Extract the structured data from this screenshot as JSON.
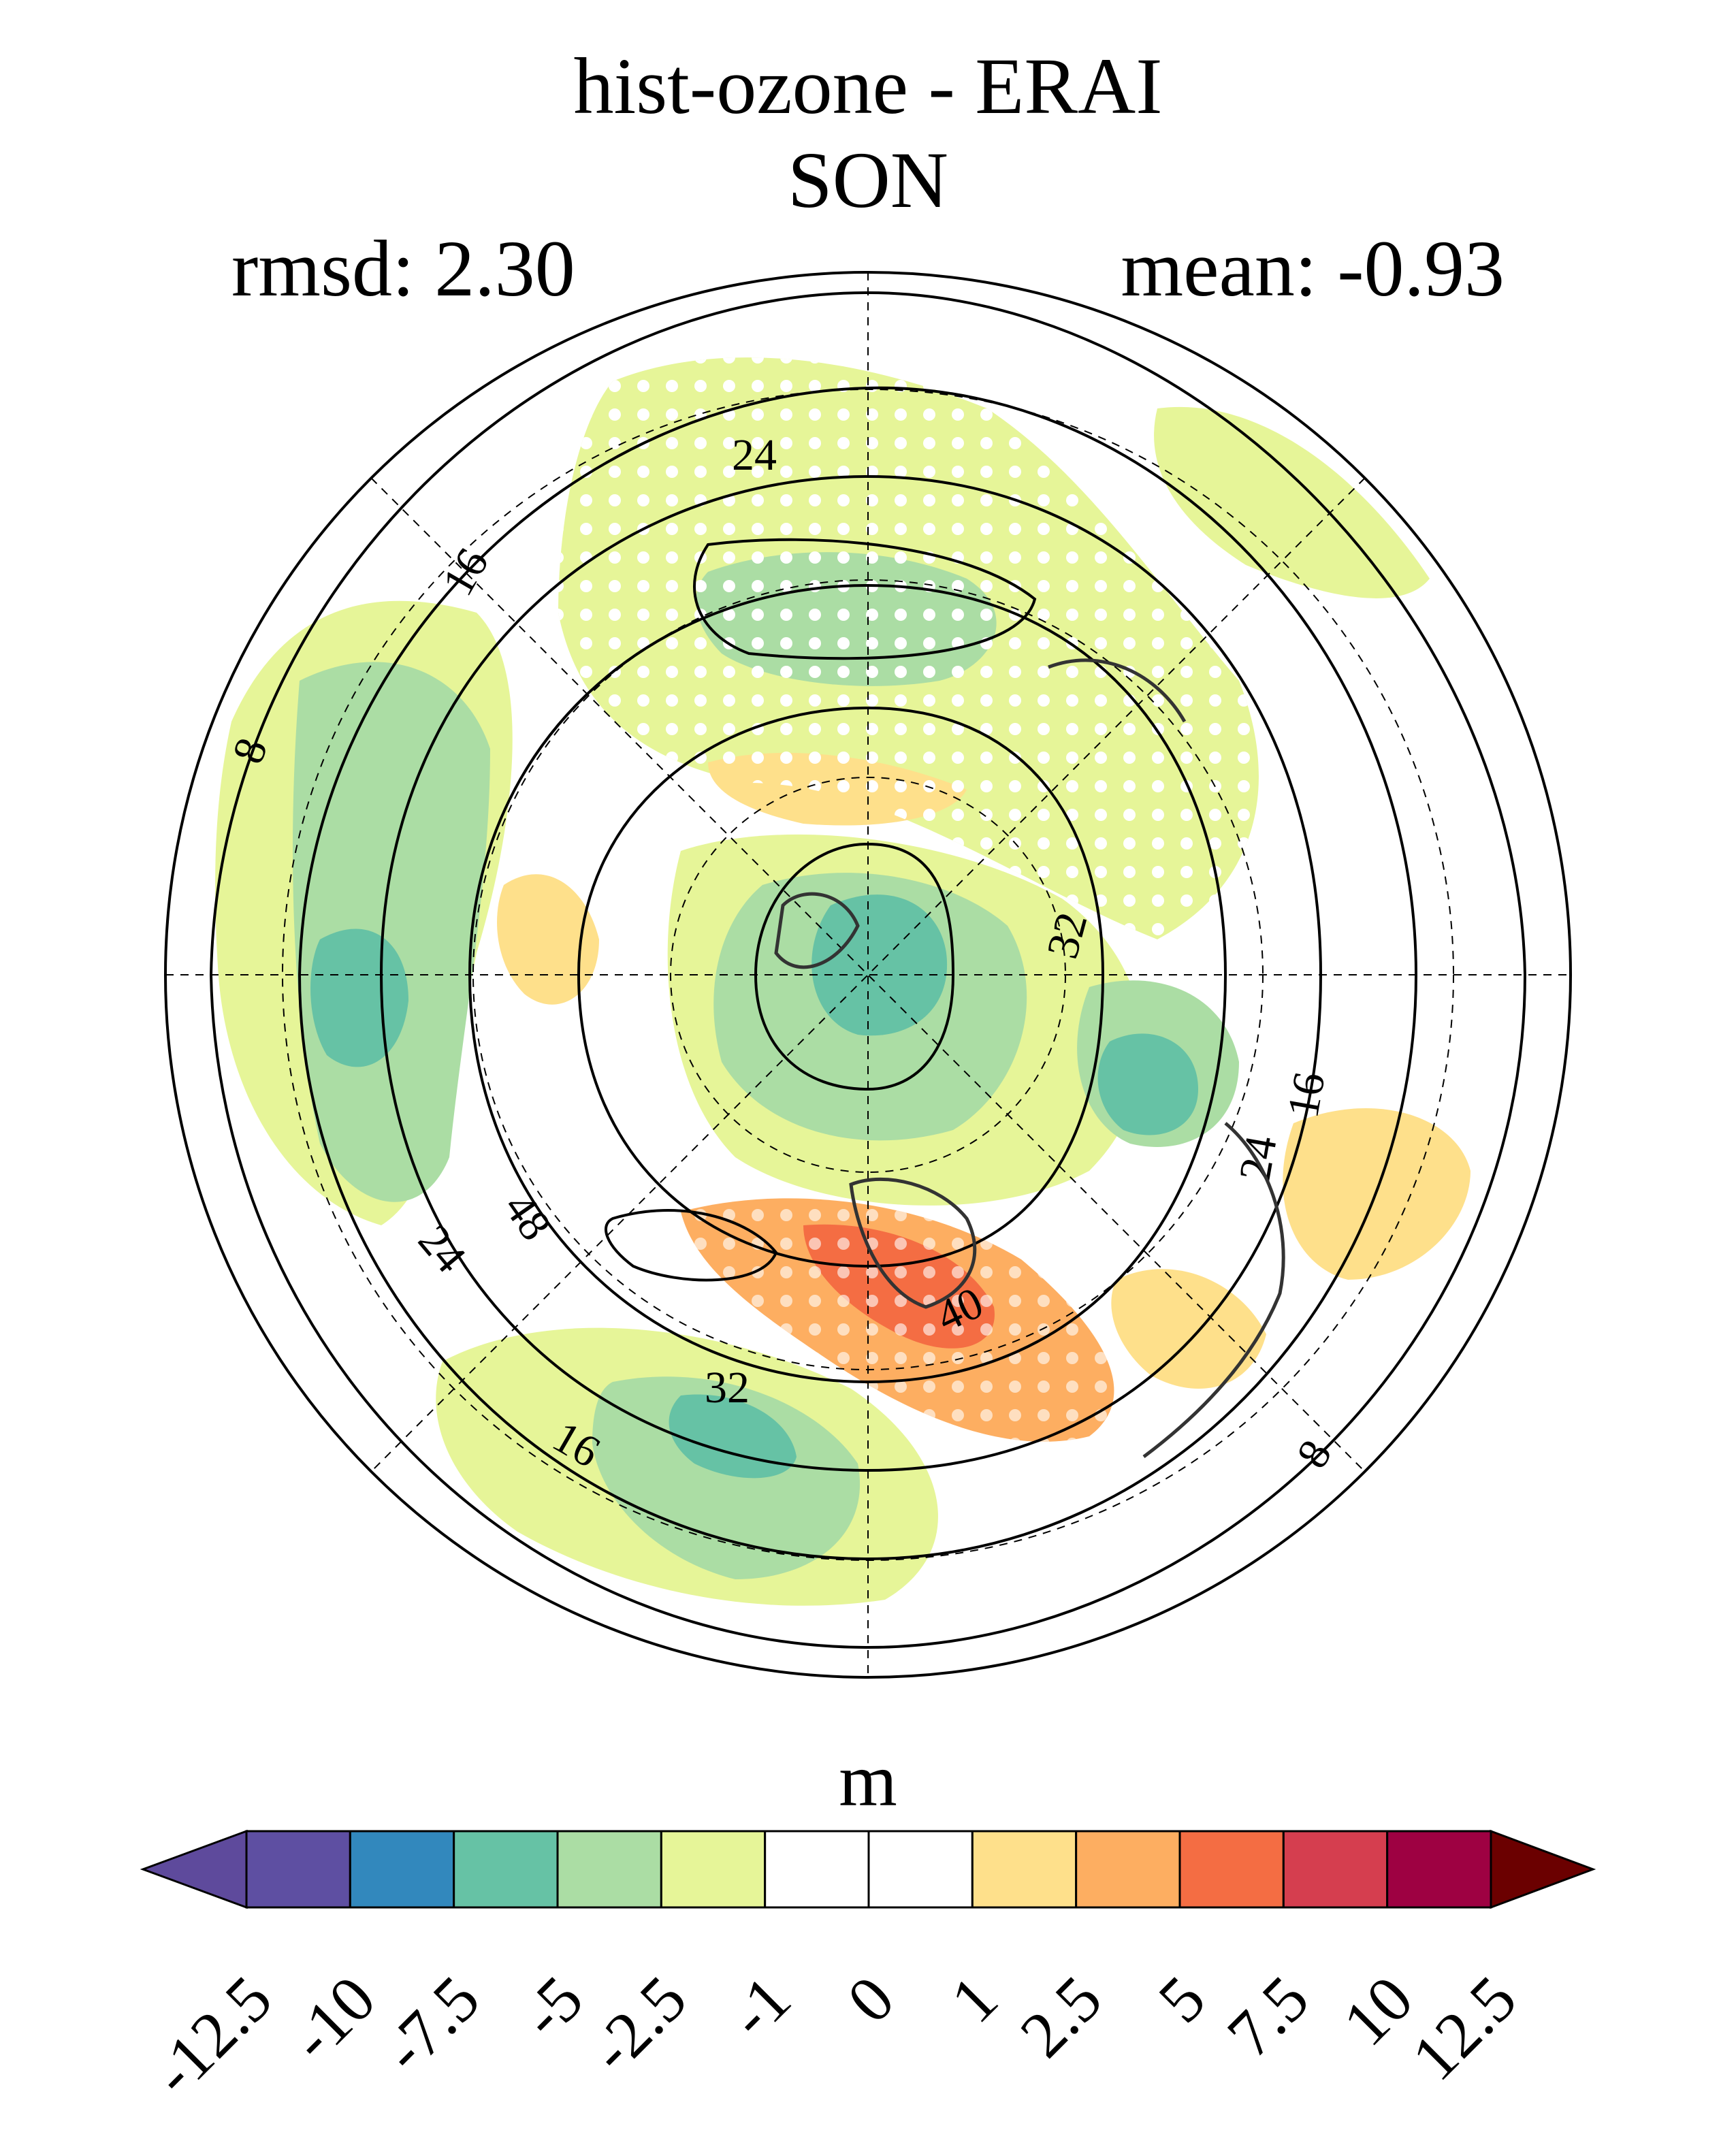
{
  "title_line1": "hist-ozone - ERAI",
  "title_line2": "SON",
  "stats": {
    "rmsd": "rmsd: 2.30",
    "mean": "mean: -0.93"
  },
  "map": {
    "projection": "polar stereographic, northern hemisphere",
    "contour_labels": [
      "24",
      "16",
      "8",
      "32",
      "16",
      "24",
      "48",
      "24",
      "40",
      "32",
      "16",
      "8"
    ],
    "stippling": "white dots mark significant areas"
  },
  "colorbar": {
    "units": "m",
    "ticks": [
      "-12.5",
      "-10",
      "-7.5",
      "-5",
      "-2.5",
      "-1",
      "0",
      "1",
      "2.5",
      "5",
      "7.5",
      "10",
      "12.5"
    ],
    "colors": [
      "#5e4a9c",
      "#5e4fa2",
      "#3288bd",
      "#66c2a5",
      "#abdda4",
      "#e6f598",
      "#ffffff",
      "#ffffff",
      "#fee08b",
      "#fdae61",
      "#f46d43",
      "#d53e4f",
      "#9e0142",
      "#6b0000"
    ]
  }
}
